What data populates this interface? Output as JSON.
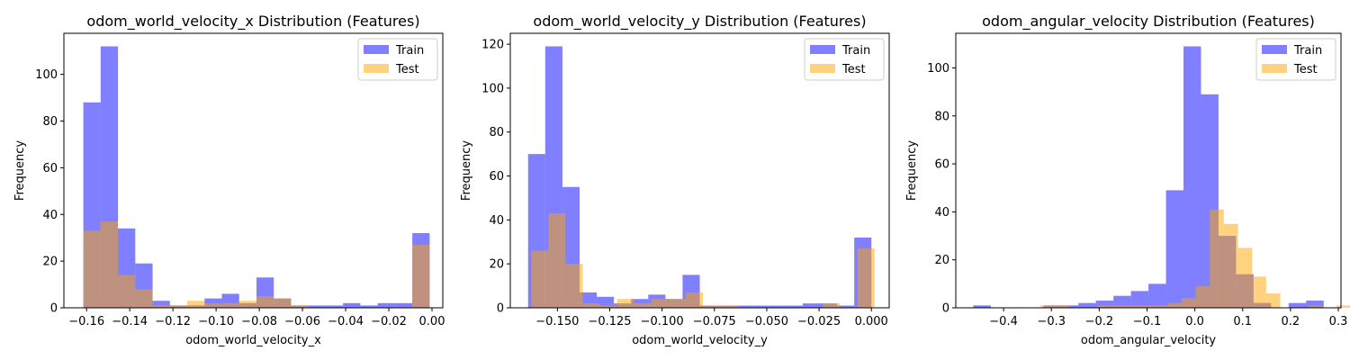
{
  "chart_data": [
    {
      "type": "histogram",
      "title": "odom_world_velocity_x Distribution (Features)",
      "xlabel": "odom_world_velocity_x",
      "ylabel": "Frequency",
      "xlim": [
        -0.1705,
        0.005
      ],
      "ylim": [
        0,
        117.6
      ],
      "xticks": [
        -0.16,
        -0.14,
        -0.12,
        -0.1,
        -0.08,
        -0.06,
        -0.04,
        -0.02,
        0.0
      ],
      "xtick_labels": [
        "−0.16",
        "−0.14",
        "−0.12",
        "−0.10",
        "−0.08",
        "−0.06",
        "−0.04",
        "−0.02",
        "0.00"
      ],
      "yticks": [
        0,
        20,
        40,
        60,
        80,
        100
      ],
      "ytick_labels": [
        "0",
        "20",
        "40",
        "60",
        "80",
        "100"
      ],
      "legend": {
        "position": "top-right"
      },
      "series": [
        {
          "name": "Train",
          "color": "#0000ff",
          "alpha": 0.5,
          "bin_start": -0.1615,
          "bin_width": 0.00802,
          "counts": [
            88,
            112,
            34,
            19,
            3,
            1,
            1,
            4,
            6,
            2,
            13,
            4,
            1,
            1,
            1,
            2,
            1,
            2,
            2,
            32
          ]
        },
        {
          "name": "Test",
          "color": "#ffa500",
          "alpha": 0.5,
          "bin_start": -0.1615,
          "bin_width": 0.00802,
          "counts": [
            33,
            37,
            14,
            8,
            1,
            1,
            3,
            2,
            2,
            3,
            5,
            4,
            1,
            0,
            0,
            0,
            0,
            0,
            0,
            27
          ]
        }
      ]
    },
    {
      "type": "histogram",
      "title": "odom_world_velocity_y Distribution (Features)",
      "xlabel": "odom_world_velocity_y",
      "ylabel": "Frequency",
      "xlim": [
        -0.1725,
        0.0085
      ],
      "ylim": [
        0,
        124.95
      ],
      "xticks": [
        -0.15,
        -0.125,
        -0.1,
        -0.075,
        -0.05,
        -0.025,
        0.0
      ],
      "xtick_labels": [
        "−0.150",
        "−0.125",
        "−0.100",
        "−0.075",
        "−0.050",
        "−0.025",
        "0.000"
      ],
      "yticks": [
        0,
        20,
        40,
        60,
        80,
        100,
        120
      ],
      "ytick_labels": [
        "0",
        "20",
        "40",
        "60",
        "80",
        "100",
        "120"
      ],
      "legend": {
        "position": "top-right"
      },
      "series": [
        {
          "name": "Train",
          "color": "#0000ff",
          "alpha": 0.5,
          "bin_start": -0.164,
          "bin_width": 0.0082,
          "counts": [
            70,
            119,
            55,
            7,
            5,
            2,
            4,
            6,
            4,
            15,
            1,
            1,
            1,
            1,
            1,
            1,
            2,
            2,
            1,
            32
          ]
        },
        {
          "name": "Test",
          "color": "#ffa500",
          "alpha": 0.5,
          "bin_start": -0.1625,
          "bin_width": 0.0082,
          "counts": [
            26,
            43,
            20,
            2,
            1,
            4,
            2,
            4,
            4,
            7,
            1,
            1,
            0,
            0,
            0,
            0,
            0,
            2,
            0,
            27
          ]
        }
      ]
    },
    {
      "type": "histogram",
      "title": "odom_angular_velocity Distribution (Features)",
      "xlabel": "odom_angular_velocity",
      "ylabel": "Frequency",
      "xlim": [
        -0.4999,
        0.3056
      ],
      "ylim": [
        0,
        114.45
      ],
      "xticks": [
        -0.4,
        -0.3,
        -0.2,
        -0.1,
        0.0,
        0.1,
        0.2,
        0.3
      ],
      "xtick_labels": [
        "−0.4",
        "−0.3",
        "−0.2",
        "−0.1",
        "0.0",
        "0.1",
        "0.2",
        "0.3"
      ],
      "yticks": [
        0,
        20,
        40,
        60,
        80,
        100
      ],
      "ytick_labels": [
        "0",
        "20",
        "40",
        "60",
        "80",
        "100"
      ],
      "legend": {
        "position": "top-right"
      },
      "series": [
        {
          "name": "Train",
          "color": "#0000ff",
          "alpha": 0.5,
          "bin_start": -0.4633,
          "bin_width": 0.03663,
          "counts": [
            1,
            0,
            0,
            0,
            1,
            1,
            2,
            3,
            5,
            7,
            10,
            49,
            109,
            89,
            30,
            14,
            2,
            0,
            2,
            3
          ]
        },
        {
          "name": "Test",
          "color": "#ffa500",
          "alpha": 0.5,
          "bin_start": -0.3226,
          "bin_width": 0.02948,
          "counts": [
            1,
            1,
            0,
            0,
            1,
            1,
            1,
            1,
            1,
            2,
            4,
            9,
            41,
            35,
            25,
            13,
            6,
            0,
            0,
            1,
            0,
            1
          ]
        }
      ]
    }
  ]
}
